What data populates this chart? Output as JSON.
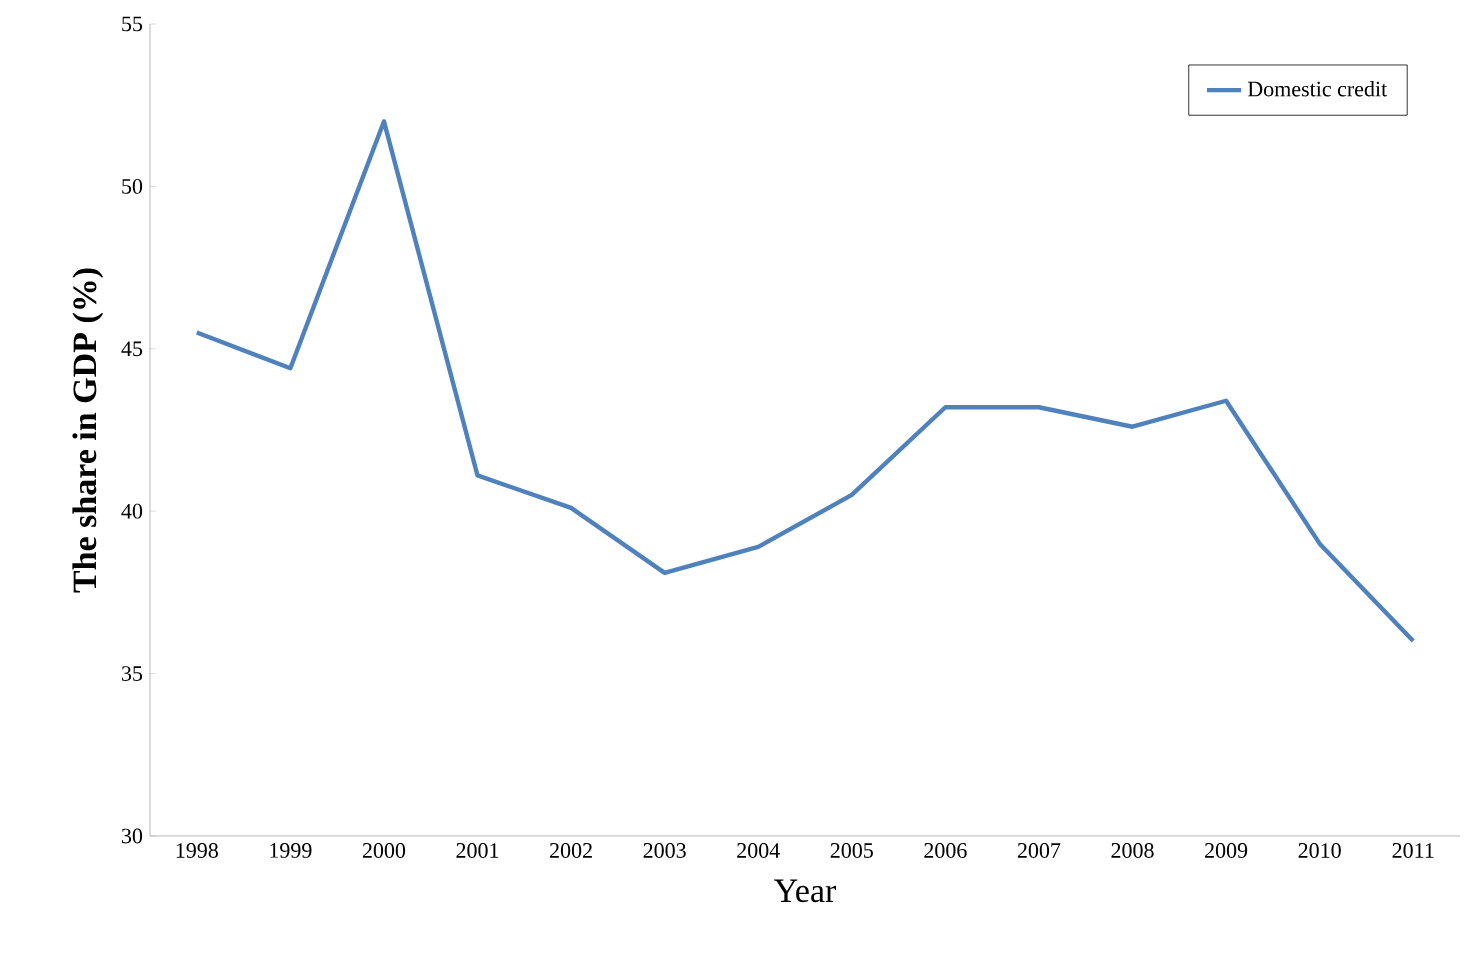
{
  "chart_data": {
    "type": "line",
    "xlabel": "Year",
    "ylabel": "The share in GDP (%)",
    "categories": [
      "1998",
      "1999",
      "2000",
      "2001",
      "2002",
      "2003",
      "2004",
      "2005",
      "2006",
      "2007",
      "2008",
      "2009",
      "2010",
      "2011"
    ],
    "series": [
      {
        "name": "Domestic credit",
        "color": "#4f81bd",
        "values": [
          45.5,
          44.4,
          52.0,
          41.1,
          40.1,
          38.1,
          38.9,
          40.5,
          43.2,
          43.2,
          42.6,
          43.4,
          39.0,
          36.0
        ]
      }
    ],
    "ylim": [
      30,
      55
    ],
    "yticks": [
      30,
      35,
      40,
      45,
      50,
      55
    ],
    "legend": "top right",
    "grid": false,
    "marker": "none",
    "line_style": "solid"
  }
}
